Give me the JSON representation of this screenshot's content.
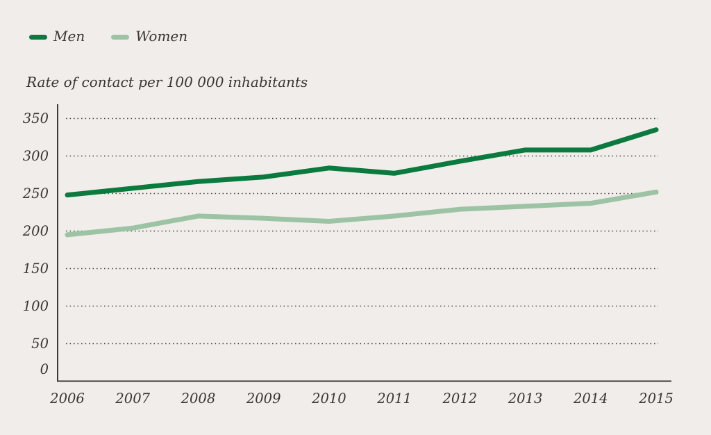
{
  "legend": {
    "items": [
      {
        "label": "Men",
        "color": "#0b7a3e"
      },
      {
        "label": "Women",
        "color": "#9dc3a5"
      }
    ]
  },
  "chart": {
    "axis_title": "Rate of contact per 100 000 inhabitants"
  },
  "chart_data": {
    "type": "line",
    "title": "",
    "x": [
      "2006",
      "2007",
      "2008",
      "2009",
      "2010",
      "2011",
      "2012",
      "2013",
      "2014",
      "2015"
    ],
    "series": [
      {
        "name": "Men",
        "color": "#0b7a3e",
        "values": [
          248,
          257,
          266,
          272,
          284,
          277,
          293,
          308,
          308,
          335
        ]
      },
      {
        "name": "Women",
        "color": "#9dc3a5",
        "values": [
          195,
          204,
          220,
          217,
          213,
          220,
          229,
          233,
          237,
          252
        ]
      }
    ],
    "xlabel": "",
    "ylabel": "Rate of contact per 100 000 inhabitants",
    "ylim": [
      0,
      350
    ],
    "yticks": [
      0,
      50,
      100,
      150,
      200,
      250,
      300,
      350
    ],
    "grid": "horizontal-dotted",
    "legend_position": "top-left"
  },
  "colors": {
    "background": "#f0edea",
    "text": "#3b3733",
    "axis": "#3e3a36",
    "gridline": "#4c4742"
  }
}
